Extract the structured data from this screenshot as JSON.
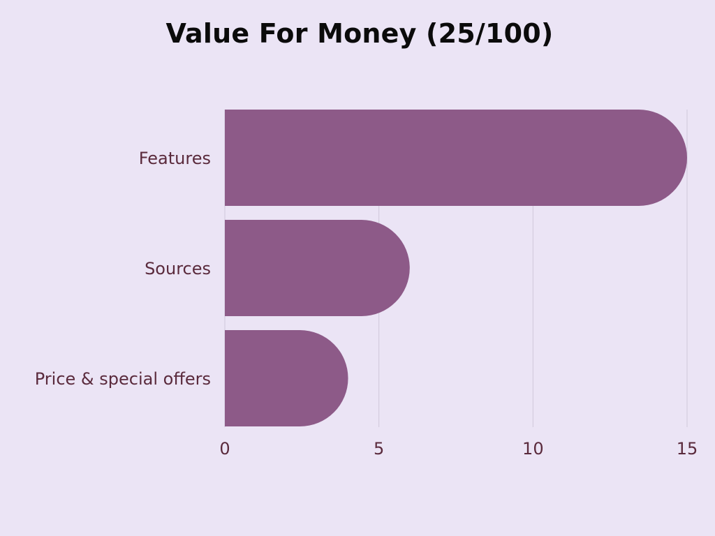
{
  "chart_data": {
    "type": "bar",
    "orientation": "horizontal",
    "title": "Value For Money (25/100)",
    "categories": [
      "Features",
      "Sources",
      "Price & special offers"
    ],
    "values": [
      15,
      6,
      4
    ],
    "xlim": [
      0,
      15
    ],
    "xticks": [
      "0",
      "5",
      "10",
      "15"
    ],
    "xlabel": "",
    "ylabel": "",
    "grid": "vertical",
    "legend": "none",
    "colors": {
      "bar": "#8d5a88",
      "grid": "#cfc8da",
      "label": "#5a2a3c",
      "title": "#0b0b0b",
      "background": "#ebe4f5"
    }
  }
}
